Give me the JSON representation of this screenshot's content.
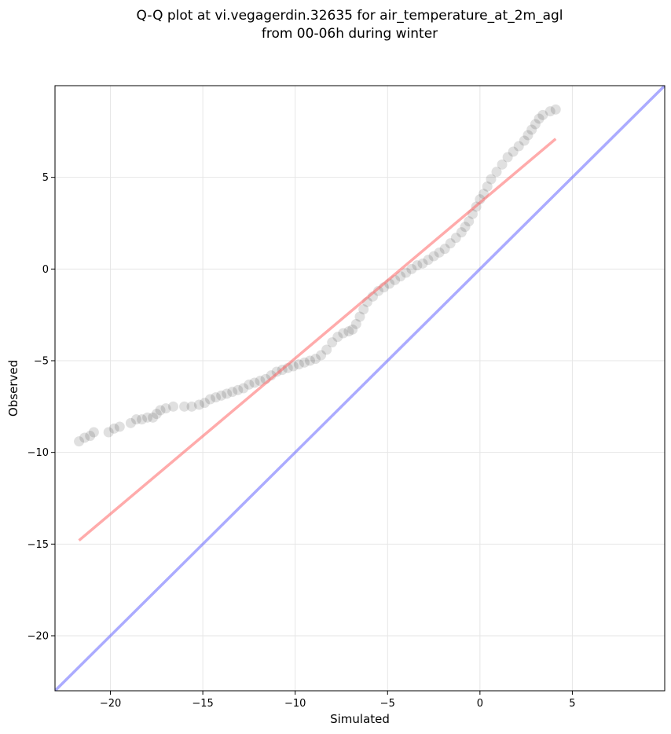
{
  "chart_data": {
    "type": "scatter",
    "title": [
      "Q-Q plot at vi.vegagerdin.32635 for air_temperature_at_2m_agl",
      "from 00-06h during winter"
    ],
    "xlabel": "Simulated",
    "ylabel": "Observed",
    "xlim": [
      -23,
      10
    ],
    "ylim": [
      -23,
      10
    ],
    "xticks": [
      -20,
      -15,
      -10,
      -5,
      0,
      5
    ],
    "yticks": [
      -20,
      -15,
      -10,
      -5,
      0,
      5
    ],
    "xtick_labels": [
      "−20",
      "−15",
      "−10",
      "−5",
      "0",
      "5"
    ],
    "ytick_labels": [
      "−20",
      "−15",
      "−10",
      "−5",
      "0",
      "5"
    ],
    "grid": true,
    "series": [
      {
        "kind": "points",
        "color": "#000000",
        "points": [
          [
            -21.7,
            -9.4
          ],
          [
            -21.4,
            -9.2
          ],
          [
            -21.1,
            -9.1
          ],
          [
            -20.9,
            -8.9
          ],
          [
            -20.1,
            -8.9
          ],
          [
            -19.8,
            -8.7
          ],
          [
            -19.5,
            -8.6
          ],
          [
            -18.9,
            -8.4
          ],
          [
            -18.6,
            -8.2
          ],
          [
            -18.3,
            -8.2
          ],
          [
            -18.0,
            -8.1
          ],
          [
            -17.7,
            -8.1
          ],
          [
            -17.5,
            -7.9
          ],
          [
            -17.3,
            -7.7
          ],
          [
            -17.0,
            -7.6
          ],
          [
            -16.6,
            -7.5
          ],
          [
            -16.0,
            -7.5
          ],
          [
            -15.6,
            -7.5
          ],
          [
            -15.2,
            -7.4
          ],
          [
            -14.9,
            -7.3
          ],
          [
            -14.6,
            -7.1
          ],
          [
            -14.3,
            -7.0
          ],
          [
            -14.0,
            -6.9
          ],
          [
            -13.7,
            -6.8
          ],
          [
            -13.4,
            -6.7
          ],
          [
            -13.1,
            -6.6
          ],
          [
            -12.8,
            -6.5
          ],
          [
            -12.5,
            -6.3
          ],
          [
            -12.2,
            -6.2
          ],
          [
            -11.9,
            -6.1
          ],
          [
            -11.6,
            -6.0
          ],
          [
            -11.3,
            -5.8
          ],
          [
            -11.0,
            -5.6
          ],
          [
            -10.7,
            -5.5
          ],
          [
            -10.4,
            -5.4
          ],
          [
            -10.1,
            -5.3
          ],
          [
            -9.8,
            -5.2
          ],
          [
            -9.5,
            -5.1
          ],
          [
            -9.2,
            -5.0
          ],
          [
            -8.9,
            -4.9
          ],
          [
            -8.6,
            -4.7
          ],
          [
            -8.3,
            -4.4
          ],
          [
            -8.0,
            -4.0
          ],
          [
            -7.7,
            -3.7
          ],
          [
            -7.4,
            -3.5
          ],
          [
            -7.1,
            -3.4
          ],
          [
            -6.9,
            -3.3
          ],
          [
            -6.7,
            -3.0
          ],
          [
            -6.5,
            -2.6
          ],
          [
            -6.3,
            -2.2
          ],
          [
            -6.1,
            -1.8
          ],
          [
            -5.8,
            -1.5
          ],
          [
            -5.5,
            -1.2
          ],
          [
            -5.2,
            -1.0
          ],
          [
            -4.9,
            -0.8
          ],
          [
            -4.6,
            -0.6
          ],
          [
            -4.3,
            -0.4
          ],
          [
            -4.0,
            -0.2
          ],
          [
            -3.7,
            0.0
          ],
          [
            -3.4,
            0.2
          ],
          [
            -3.1,
            0.3
          ],
          [
            -2.8,
            0.5
          ],
          [
            -2.5,
            0.7
          ],
          [
            -2.2,
            0.9
          ],
          [
            -1.9,
            1.1
          ],
          [
            -1.6,
            1.4
          ],
          [
            -1.3,
            1.7
          ],
          [
            -1.0,
            2.0
          ],
          [
            -0.8,
            2.3
          ],
          [
            -0.6,
            2.6
          ],
          [
            -0.4,
            3.0
          ],
          [
            -0.2,
            3.4
          ],
          [
            0.0,
            3.8
          ],
          [
            0.2,
            4.1
          ],
          [
            0.4,
            4.5
          ],
          [
            0.6,
            4.9
          ],
          [
            0.9,
            5.3
          ],
          [
            1.2,
            5.7
          ],
          [
            1.5,
            6.1
          ],
          [
            1.8,
            6.4
          ],
          [
            2.1,
            6.7
          ],
          [
            2.4,
            7.0
          ],
          [
            2.6,
            7.3
          ],
          [
            2.8,
            7.6
          ],
          [
            3.0,
            7.9
          ],
          [
            3.2,
            8.2
          ],
          [
            3.4,
            8.4
          ],
          [
            3.8,
            8.6
          ],
          [
            4.1,
            8.7
          ]
        ]
      },
      {
        "kind": "line",
        "name": "",
        "color": "#ff6666",
        "points": [
          [
            -21.7,
            -14.8
          ],
          [
            4.1,
            7.1
          ]
        ]
      },
      {
        "kind": "line",
        "name": "",
        "color": "#6666ff",
        "points": [
          [
            -23,
            -23
          ],
          [
            10,
            10
          ]
        ]
      }
    ]
  }
}
